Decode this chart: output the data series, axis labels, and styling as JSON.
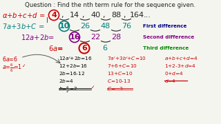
{
  "title": "Question : Find the nth term rule for the sequence given.",
  "sequence": [
    "4",
    "14",
    "40",
    "88",
    "164"
  ],
  "first_diff": [
    "10",
    "26",
    "48",
    "76"
  ],
  "second_diff": [
    "16",
    "22",
    "28"
  ],
  "third_diff": [
    "6",
    "6"
  ],
  "bg_color": "#f5f5f0",
  "title_color": "#222222",
  "row1_color": "#cc0000",
  "row2_color": "#008080",
  "row3_color": "#800080",
  "row4_color": "#cc0000",
  "fd_label_color": "#000080",
  "sd_label_color": "#800080",
  "td_label_color": "#008800",
  "arc_color": "#222222",
  "third_diff_second": "#008080",
  "work_left_color": "#cc0000",
  "work_mid_color": "#000000",
  "work_right_color": "#cc0000"
}
